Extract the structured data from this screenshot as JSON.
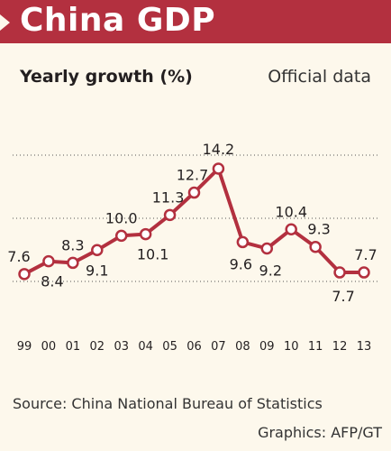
{
  "header": {
    "title": "China GDP"
  },
  "subtitle": "Yearly growth (%)",
  "note": "Official data",
  "footer": {
    "source": "Source: China National Bureau of Statistics",
    "credit": "Graphics: AFP/GT"
  },
  "colors": {
    "banner": "#b3303f",
    "line": "#b3303f",
    "marker_fill": "#ffffff",
    "grid": "#555555",
    "background": "#fdf8ec"
  },
  "chart_data": {
    "type": "line",
    "title": "Yearly growth (%)",
    "categories": [
      "99",
      "00",
      "01",
      "02",
      "03",
      "04",
      "05",
      "06",
      "07",
      "08",
      "09",
      "10",
      "11",
      "12",
      "13"
    ],
    "series": [
      {
        "values": [
          7.6,
          8.4,
          8.3,
          9.1,
          10.0,
          10.1,
          11.3,
          12.7,
          14.2,
          9.6,
          9.2,
          10.4,
          9.3,
          7.7,
          7.7
        ]
      }
    ],
    "data_labels": [
      "7.6",
      "8.4",
      "8.3",
      "9.1",
      "10.0",
      "10.1",
      "11.3",
      "12.7",
      "14.2",
      "9.6",
      "9.2",
      "10.4",
      "9.3",
      "7.7",
      "7.7"
    ],
    "ylim": [
      6,
      15
    ],
    "grid": "dotted horizontal",
    "legend": "none"
  }
}
